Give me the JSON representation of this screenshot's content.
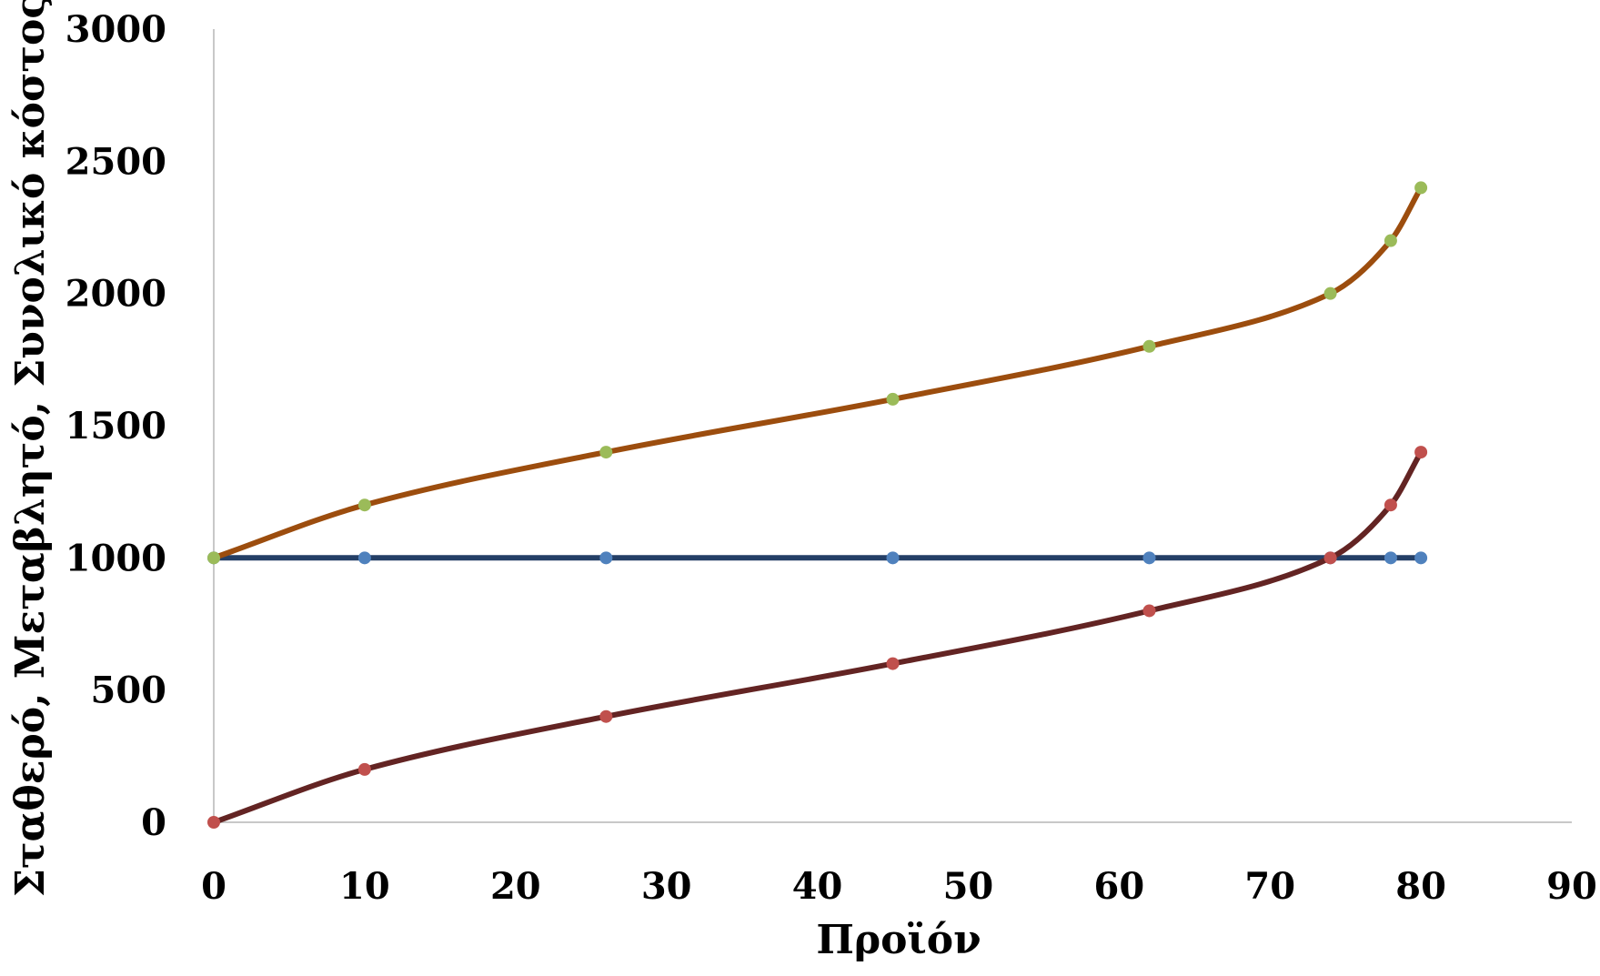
{
  "chart_data": {
    "type": "line",
    "title": "",
    "xlabel": "Προϊόν",
    "ylabel": "Σταθερό, Μεταβλητό, Συνολικό κόστος",
    "xlim": [
      0,
      90
    ],
    "ylim": [
      0,
      3000
    ],
    "xticks": [
      "0",
      "10",
      "20",
      "30",
      "40",
      "50",
      "60",
      "70",
      "80",
      "90"
    ],
    "yticks": [
      "0",
      "500",
      "1000",
      "1500",
      "2000",
      "2500",
      "3000"
    ],
    "grid": false,
    "legend": "none",
    "series": [
      {
        "line_color": "#243f66",
        "marker_color": "#4f81bd",
        "x": [
          0,
          10,
          26,
          45,
          62,
          74,
          78,
          80
        ],
        "y": [
          1000,
          1000,
          1000,
          1000,
          1000,
          1000,
          1000,
          1000
        ]
      },
      {
        "line_color": "#632423",
        "marker_color": "#c0504d",
        "x": [
          0,
          10,
          26,
          45,
          62,
          74,
          78,
          80
        ],
        "y": [
          0,
          200,
          400,
          600,
          800,
          1000,
          1200,
          1400
        ]
      },
      {
        "line_color": "#9c4d0e",
        "marker_color": "#9bbb59",
        "x": [
          0,
          10,
          26,
          45,
          62,
          74,
          78,
          80
        ],
        "y": [
          1000,
          1200,
          1400,
          1600,
          1800,
          2000,
          2200,
          2400
        ]
      }
    ]
  }
}
